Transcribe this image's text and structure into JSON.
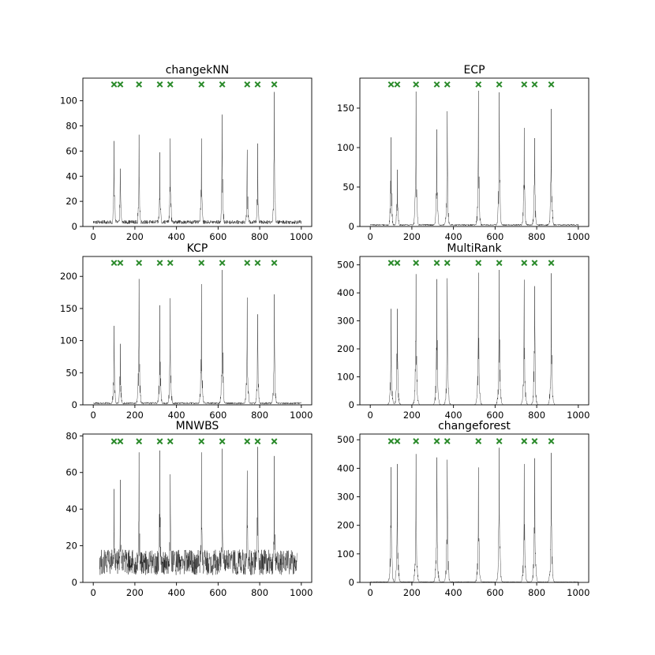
{
  "figure": {
    "marker_color": "#2a8a2a",
    "line_color": "#000000"
  },
  "changepoints": [
    100,
    130,
    220,
    320,
    370,
    520,
    620,
    740,
    790,
    870
  ],
  "chart_data": [
    {
      "type": "line",
      "title": "changekNN",
      "xlabel": "",
      "ylabel": "",
      "xlim": [
        -50,
        1050
      ],
      "ylim": [
        0,
        118
      ],
      "xticks": [
        0,
        200,
        400,
        600,
        800,
        1000
      ],
      "yticks": [
        0,
        20,
        40,
        60,
        80,
        100
      ],
      "marker_y": 113,
      "baseline": 2,
      "noise": 3,
      "x_start": 0,
      "x_end": 1000,
      "peaks": [
        {
          "x": 100,
          "y": 68
        },
        {
          "x": 130,
          "y": 46
        },
        {
          "x": 220,
          "y": 73
        },
        {
          "x": 320,
          "y": 59
        },
        {
          "x": 370,
          "y": 70
        },
        {
          "x": 520,
          "y": 70
        },
        {
          "x": 620,
          "y": 89
        },
        {
          "x": 740,
          "y": 61
        },
        {
          "x": 790,
          "y": 66
        },
        {
          "x": 870,
          "y": 107
        }
      ]
    },
    {
      "type": "line",
      "title": "ECP",
      "xlabel": "",
      "ylabel": "",
      "xlim": [
        -50,
        1050
      ],
      "ylim": [
        0,
        188
      ],
      "xticks": [
        0,
        200,
        400,
        600,
        800,
        1000
      ],
      "yticks": [
        0,
        50,
        100,
        150
      ],
      "marker_y": 180,
      "baseline": 1,
      "noise": 2,
      "x_start": 0,
      "x_end": 1000,
      "peaks": [
        {
          "x": 100,
          "y": 113
        },
        {
          "x": 130,
          "y": 72
        },
        {
          "x": 220,
          "y": 171
        },
        {
          "x": 320,
          "y": 123
        },
        {
          "x": 370,
          "y": 146
        },
        {
          "x": 520,
          "y": 172
        },
        {
          "x": 620,
          "y": 170
        },
        {
          "x": 740,
          "y": 125
        },
        {
          "x": 790,
          "y": 112
        },
        {
          "x": 870,
          "y": 149
        }
      ]
    },
    {
      "type": "line",
      "title": "KCP",
      "xlabel": "",
      "ylabel": "",
      "xlim": [
        -50,
        1050
      ],
      "ylim": [
        0,
        231
      ],
      "xticks": [
        0,
        200,
        400,
        600,
        800,
        1000
      ],
      "yticks": [
        0,
        50,
        100,
        150,
        200
      ],
      "marker_y": 221,
      "baseline": 1,
      "noise": 3,
      "x_start": 0,
      "x_end": 1000,
      "peaks": [
        {
          "x": 100,
          "y": 123
        },
        {
          "x": 130,
          "y": 95
        },
        {
          "x": 220,
          "y": 196
        },
        {
          "x": 320,
          "y": 155
        },
        {
          "x": 370,
          "y": 166
        },
        {
          "x": 520,
          "y": 188
        },
        {
          "x": 620,
          "y": 210
        },
        {
          "x": 740,
          "y": 167
        },
        {
          "x": 790,
          "y": 141
        },
        {
          "x": 870,
          "y": 172
        }
      ]
    },
    {
      "type": "line",
      "title": "MultiRank",
      "xlabel": "",
      "ylabel": "",
      "xlim": [
        -50,
        1050
      ],
      "ylim": [
        0,
        530
      ],
      "xticks": [
        0,
        200,
        400,
        600,
        800,
        1000
      ],
      "yticks": [
        0,
        100,
        200,
        300,
        400,
        500
      ],
      "marker_y": 507,
      "baseline": 0,
      "noise": 0.5,
      "x_start": 0,
      "x_end": 1000,
      "peaks": [
        {
          "x": 100,
          "y": 343
        },
        {
          "x": 130,
          "y": 343
        },
        {
          "x": 220,
          "y": 467
        },
        {
          "x": 320,
          "y": 449
        },
        {
          "x": 370,
          "y": 452
        },
        {
          "x": 520,
          "y": 472
        },
        {
          "x": 620,
          "y": 482
        },
        {
          "x": 740,
          "y": 447
        },
        {
          "x": 790,
          "y": 424
        },
        {
          "x": 870,
          "y": 470
        }
      ]
    },
    {
      "type": "line",
      "title": "MNWBS",
      "xlabel": "",
      "ylabel": "",
      "xlim": [
        -50,
        1050
      ],
      "ylim": [
        0,
        81
      ],
      "xticks": [
        0,
        200,
        400,
        600,
        800,
        1000
      ],
      "yticks": [
        0,
        20,
        40,
        60,
        80
      ],
      "marker_y": 77,
      "baseline": 4,
      "noise": 14,
      "x_start": 30,
      "x_end": 980,
      "peaks": [
        {
          "x": 100,
          "y": 51
        },
        {
          "x": 130,
          "y": 56
        },
        {
          "x": 220,
          "y": 71
        },
        {
          "x": 320,
          "y": 72
        },
        {
          "x": 370,
          "y": 59
        },
        {
          "x": 520,
          "y": 71
        },
        {
          "x": 620,
          "y": 73
        },
        {
          "x": 740,
          "y": 61
        },
        {
          "x": 790,
          "y": 74
        },
        {
          "x": 870,
          "y": 69
        }
      ]
    },
    {
      "type": "line",
      "title": "changeforest",
      "xlabel": "",
      "ylabel": "",
      "xlim": [
        -50,
        1050
      ],
      "ylim": [
        0,
        520
      ],
      "xticks": [
        0,
        200,
        400,
        600,
        800,
        1000
      ],
      "yticks": [
        0,
        100,
        200,
        300,
        400,
        500
      ],
      "marker_y": 495,
      "baseline": 1,
      "noise": 2,
      "x_start": 0,
      "x_end": 1000,
      "peaks": [
        {
          "x": 100,
          "y": 404
        },
        {
          "x": 130,
          "y": 415
        },
        {
          "x": 220,
          "y": 450
        },
        {
          "x": 320,
          "y": 438
        },
        {
          "x": 370,
          "y": 430
        },
        {
          "x": 520,
          "y": 403
        },
        {
          "x": 620,
          "y": 472
        },
        {
          "x": 740,
          "y": 415
        },
        {
          "x": 790,
          "y": 435
        },
        {
          "x": 870,
          "y": 454
        }
      ]
    }
  ]
}
